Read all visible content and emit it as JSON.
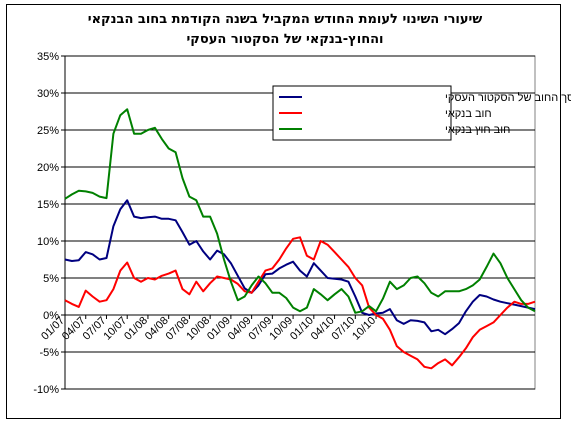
{
  "chart_data": {
    "type": "line",
    "title_lines": [
      "שיעורי השינוי לעומת החודש המקביל בשנה הקודמת בחוב הבנקאי",
      "והחוץ-בנקאי של הסקטור העסקי"
    ],
    "yticks": [
      "35%",
      "30%",
      "25%",
      "20%",
      "15%",
      "10%",
      "5%",
      "0%",
      "-5%",
      "-10%"
    ],
    "ylim": [
      -10,
      35
    ],
    "xticks": [
      "01/07",
      "04/07",
      "07/07",
      "10/07",
      "01/08",
      "04/08",
      "07/08",
      "10/08",
      "01/09",
      "04/09",
      "07/09",
      "10/09",
      "01/10",
      "04/10",
      "07/10",
      "10/10"
    ],
    "x_start": "2007-01",
    "grid": "horizontal",
    "legend_position": "top-right",
    "series": [
      {
        "name": "סך החוב של הסקטור העסקי",
        "color": "#000080",
        "values": [
          7.5,
          7.3,
          7.4,
          8.5,
          8.2,
          7.5,
          7.7,
          12.0,
          14.3,
          15.5,
          13.3,
          13.1,
          13.2,
          13.3,
          13.0,
          13.0,
          12.8,
          11.2,
          9.5,
          10.0,
          8.6,
          7.5,
          8.7,
          8.2,
          7.0,
          5.3,
          3.6,
          3.0,
          4.0,
          5.5,
          5.6,
          6.3,
          6.8,
          7.2,
          6.0,
          5.2,
          7.0,
          6.0,
          5.0,
          4.9,
          4.8,
          4.5,
          2.5,
          0.3,
          0.0,
          0.2,
          0.3,
          0.8,
          -0.7,
          -1.2,
          -0.7,
          -0.8,
          -1.0,
          -2.2,
          -2.0,
          -2.6,
          -1.9,
          -1.1,
          0.5,
          1.8,
          2.7,
          2.5,
          2.1,
          1.8,
          1.6,
          1.4,
          1.2,
          1.0,
          0.8
        ]
      },
      {
        "name": "חוב בנקאי",
        "color": "#ff0000",
        "values": [
          2.0,
          1.5,
          1.1,
          3.3,
          2.5,
          1.8,
          2.0,
          3.5,
          6.0,
          7.1,
          5.0,
          4.5,
          5.0,
          4.8,
          5.3,
          5.6,
          6.0,
          3.5,
          2.8,
          4.5,
          3.2,
          4.3,
          5.2,
          5.0,
          4.8,
          4.2,
          3.2,
          3.0,
          4.5,
          6.0,
          6.3,
          7.5,
          9.0,
          10.3,
          10.5,
          8.0,
          7.5,
          10.0,
          9.5,
          8.5,
          7.5,
          6.5,
          5.0,
          4.0,
          1.0,
          0.0,
          -0.5,
          -2.0,
          -4.2,
          -5.0,
          -5.5,
          -6.0,
          -7.0,
          -7.2,
          -6.5,
          -6.0,
          -6.8,
          -5.7,
          -4.5,
          -3.0,
          -2.0,
          -1.5,
          -1.0,
          0.0,
          1.0,
          1.8,
          1.5,
          1.5,
          1.8
        ]
      },
      {
        "name": "חוב חוץ בנקאי",
        "color": "#008000",
        "values": [
          15.7,
          16.3,
          16.8,
          16.7,
          16.5,
          16.0,
          15.8,
          24.5,
          27.0,
          27.8,
          24.5,
          24.5,
          25.0,
          25.3,
          23.8,
          22.5,
          22.0,
          18.5,
          16.0,
          15.5,
          13.3,
          13.3,
          11.0,
          7.5,
          4.5,
          2.0,
          2.5,
          4.0,
          5.2,
          4.3,
          3.0,
          3.0,
          2.3,
          1.0,
          0.5,
          1.0,
          3.5,
          2.8,
          2.0,
          2.8,
          3.5,
          2.5,
          0.3,
          0.5,
          1.2,
          0.5,
          2.2,
          4.5,
          3.5,
          4.0,
          5.0,
          5.2,
          4.3,
          3.0,
          2.5,
          3.2,
          3.2,
          3.2,
          3.5,
          4.0,
          4.8,
          6.5,
          8.3,
          7.0,
          5.0,
          3.5,
          2.0,
          1.0,
          0.5
        ]
      }
    ]
  }
}
